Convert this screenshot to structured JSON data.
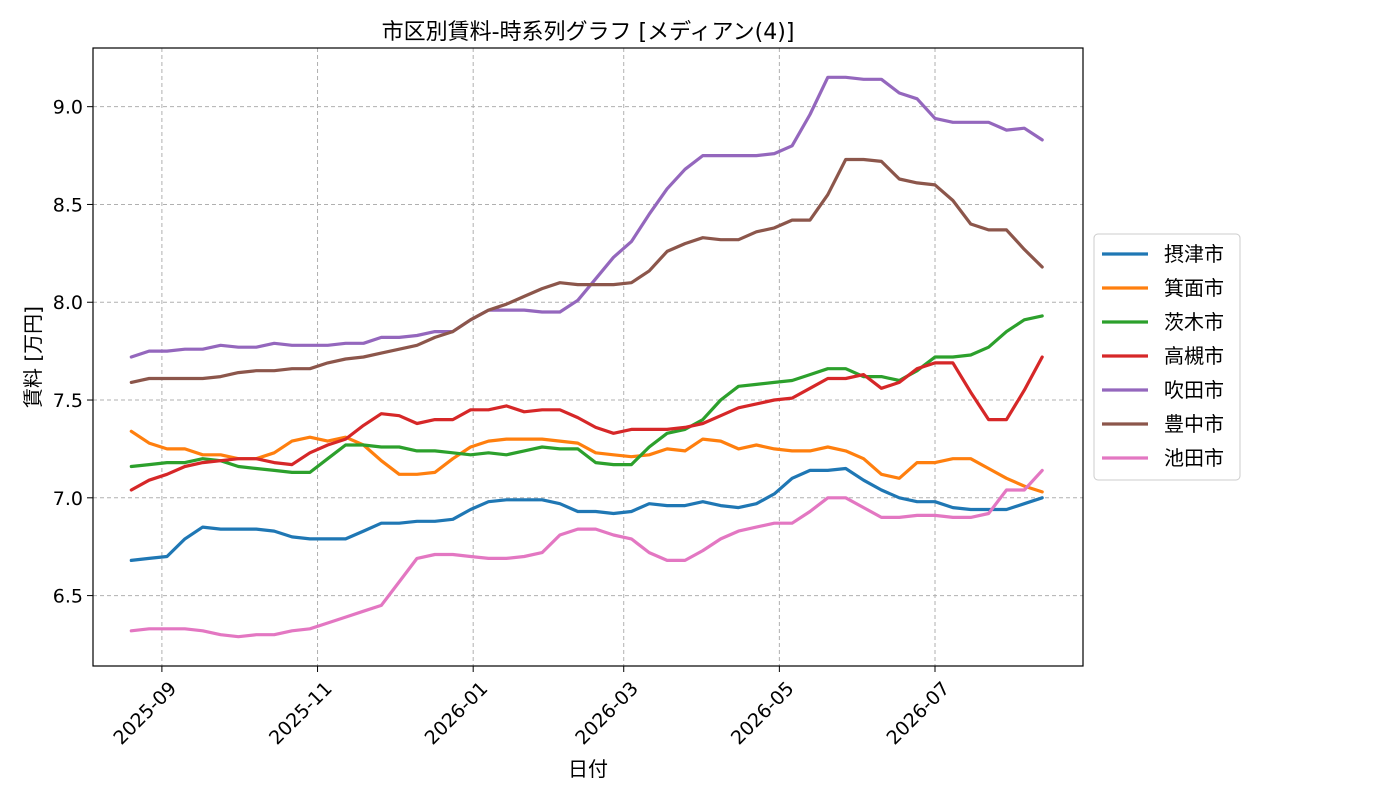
{
  "chart_data": {
    "type": "line",
    "title": "市区別賃料-時系列グラフ [メディアン(4)]",
    "xlabel": "日付",
    "ylabel": "賃料 [万円]",
    "x_start": "2025-08-20",
    "x_step_days": 7,
    "xlim": [
      "2025-08-05",
      "2026-08-28"
    ],
    "ylim": [
      6.14,
      9.3
    ],
    "xticks": [
      {
        "date": "2025-09-01",
        "label": "2025-09"
      },
      {
        "date": "2025-11-01",
        "label": "2025-11"
      },
      {
        "date": "2026-01-01",
        "label": "2026-01"
      },
      {
        "date": "2026-03-01",
        "label": "2026-03"
      },
      {
        "date": "2026-05-01",
        "label": "2026-05"
      },
      {
        "date": "2026-07-01",
        "label": "2026-07"
      }
    ],
    "yticks": [
      6.5,
      7.0,
      7.5,
      8.0,
      8.5,
      9.0
    ],
    "ytick_labels": [
      "6.5",
      "7.0",
      "7.5",
      "8.0",
      "8.5",
      "9.0"
    ],
    "grid": true,
    "legend_position": "right",
    "series": [
      {
        "name": "摂津市",
        "color": "#1f77b4",
        "values": [
          6.68,
          6.69,
          6.7,
          6.79,
          6.85,
          6.84,
          6.84,
          6.84,
          6.83,
          6.8,
          6.79,
          6.79,
          6.79,
          6.83,
          6.87,
          6.87,
          6.88,
          6.88,
          6.89,
          6.94,
          6.98,
          6.99,
          6.99,
          6.99,
          6.97,
          6.93,
          6.93,
          6.92,
          6.93,
          6.97,
          6.96,
          6.96,
          6.98,
          6.96,
          6.95,
          6.97,
          7.02,
          7.1,
          7.14,
          7.14,
          7.15,
          7.09,
          7.04,
          7.0,
          6.98,
          6.98,
          6.95,
          6.94,
          6.94,
          6.94,
          6.97,
          7.0
        ]
      },
      {
        "name": "箕面市",
        "color": "#ff7f0e",
        "values": [
          7.34,
          7.28,
          7.25,
          7.25,
          7.22,
          7.22,
          7.2,
          7.2,
          7.23,
          7.29,
          7.31,
          7.29,
          7.31,
          7.27,
          7.19,
          7.12,
          7.12,
          7.13,
          7.2,
          7.26,
          7.29,
          7.3,
          7.3,
          7.3,
          7.29,
          7.28,
          7.23,
          7.22,
          7.21,
          7.22,
          7.25,
          7.24,
          7.3,
          7.29,
          7.25,
          7.27,
          7.25,
          7.24,
          7.24,
          7.26,
          7.24,
          7.2,
          7.12,
          7.1,
          7.18,
          7.18,
          7.2,
          7.2,
          7.15,
          7.1,
          7.06,
          7.03
        ]
      },
      {
        "name": "茨木市",
        "color": "#2ca02c",
        "values": [
          7.16,
          7.17,
          7.18,
          7.18,
          7.2,
          7.19,
          7.16,
          7.15,
          7.14,
          7.13,
          7.13,
          7.2,
          7.27,
          7.27,
          7.26,
          7.26,
          7.24,
          7.24,
          7.23,
          7.22,
          7.23,
          7.22,
          7.24,
          7.26,
          7.25,
          7.25,
          7.18,
          7.17,
          7.17,
          7.26,
          7.33,
          7.35,
          7.4,
          7.5,
          7.57,
          7.58,
          7.59,
          7.6,
          7.63,
          7.66,
          7.66,
          7.62,
          7.62,
          7.6,
          7.65,
          7.72,
          7.72,
          7.73,
          7.77,
          7.85,
          7.91,
          7.93
        ]
      },
      {
        "name": "高槻市",
        "color": "#d62728",
        "values": [
          7.04,
          7.09,
          7.12,
          7.16,
          7.18,
          7.19,
          7.2,
          7.2,
          7.18,
          7.17,
          7.23,
          7.27,
          7.3,
          7.37,
          7.43,
          7.42,
          7.38,
          7.4,
          7.4,
          7.45,
          7.45,
          7.47,
          7.44,
          7.45,
          7.45,
          7.41,
          7.36,
          7.33,
          7.35,
          7.35,
          7.35,
          7.36,
          7.38,
          7.42,
          7.46,
          7.48,
          7.5,
          7.51,
          7.56,
          7.61,
          7.61,
          7.63,
          7.56,
          7.59,
          7.66,
          7.69,
          7.69,
          7.54,
          7.4,
          7.4,
          7.55,
          7.72
        ]
      },
      {
        "name": "吹田市",
        "color": "#9467bd",
        "values": [
          7.72,
          7.75,
          7.75,
          7.76,
          7.76,
          7.78,
          7.77,
          7.77,
          7.79,
          7.78,
          7.78,
          7.78,
          7.79,
          7.79,
          7.82,
          7.82,
          7.83,
          7.85,
          7.85,
          7.91,
          7.96,
          7.96,
          7.96,
          7.95,
          7.95,
          8.01,
          8.12,
          8.23,
          8.31,
          8.45,
          8.58,
          8.68,
          8.75,
          8.75,
          8.75,
          8.75,
          8.76,
          8.8,
          8.96,
          9.15,
          9.15,
          9.14,
          9.14,
          9.07,
          9.04,
          8.94,
          8.92,
          8.92,
          8.92,
          8.88,
          8.89,
          8.83
        ]
      },
      {
        "name": "豊中市",
        "color": "#8c564b",
        "values": [
          7.59,
          7.61,
          7.61,
          7.61,
          7.61,
          7.62,
          7.64,
          7.65,
          7.65,
          7.66,
          7.66,
          7.69,
          7.71,
          7.72,
          7.74,
          7.76,
          7.78,
          7.82,
          7.85,
          7.91,
          7.96,
          7.99,
          8.03,
          8.07,
          8.1,
          8.09,
          8.09,
          8.09,
          8.1,
          8.16,
          8.26,
          8.3,
          8.33,
          8.32,
          8.32,
          8.36,
          8.38,
          8.42,
          8.42,
          8.55,
          8.73,
          8.73,
          8.72,
          8.63,
          8.61,
          8.6,
          8.52,
          8.4,
          8.37,
          8.37,
          8.27,
          8.18
        ]
      },
      {
        "name": "池田市",
        "color": "#e377c2",
        "values": [
          6.32,
          6.33,
          6.33,
          6.33,
          6.32,
          6.3,
          6.29,
          6.3,
          6.3,
          6.32,
          6.33,
          6.36,
          6.39,
          6.42,
          6.45,
          6.57,
          6.69,
          6.71,
          6.71,
          6.7,
          6.69,
          6.69,
          6.7,
          6.72,
          6.81,
          6.84,
          6.84,
          6.81,
          6.79,
          6.72,
          6.68,
          6.68,
          6.73,
          6.79,
          6.83,
          6.85,
          6.87,
          6.87,
          6.93,
          7.0,
          7.0,
          6.95,
          6.9,
          6.9,
          6.91,
          6.91,
          6.9,
          6.9,
          6.92,
          7.04,
          7.04,
          7.14
        ]
      }
    ]
  }
}
